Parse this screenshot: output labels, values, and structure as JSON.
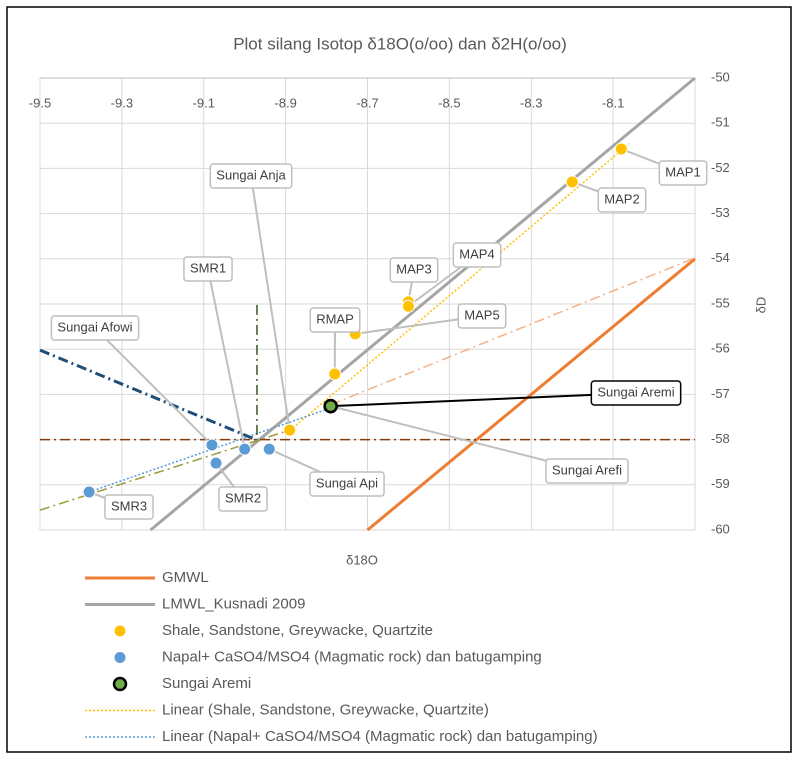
{
  "chart_data": {
    "type": "scatter",
    "title": "Plot silang Isotop δ18O(o/oo) dan δ2H(o/oo)",
    "x_label": "δ18O",
    "y_label": "δD",
    "xlim": [
      -9.5,
      -7.9
    ],
    "xticks": [
      -9.5,
      -9.3,
      -9.1,
      -8.9,
      -8.7,
      -8.5,
      -8.3,
      -8.1
    ],
    "ylim": [
      -60,
      -50
    ],
    "yticks": [
      -60,
      -59,
      -58,
      -57,
      -56,
      -55,
      -54,
      -53,
      -52,
      -51,
      -50
    ],
    "grid": true,
    "legend": "bottom",
    "series": [
      {
        "name": "GMWL",
        "mode": "line",
        "color": "#ed7d31",
        "dash": "solid",
        "width": 3,
        "x": [
          -8.7,
          -7.9
        ],
        "values": [
          -60,
          -54
        ]
      },
      {
        "name": "LMWL_Kusnadi 2009",
        "mode": "line",
        "color": "#a5a5a5",
        "dash": "solid",
        "width": 3,
        "x": [
          -9.23,
          -7.9
        ],
        "values": [
          -60,
          -50
        ]
      },
      {
        "name": "Shale, Sandstone, Greywacke, Quartzite",
        "mode": "markers",
        "color": "#ffc000",
        "x": [
          -8.08,
          -8.2,
          -8.6,
          -8.6,
          -8.73,
          -8.78,
          -8.89
        ],
        "values": [
          -51.57,
          -52.3,
          -54.95,
          -55.05,
          -55.66,
          -56.55,
          -57.79
        ],
        "labels": [
          "MAP1",
          "MAP2",
          "MAP3",
          "MAP4",
          "MAP5",
          "RMAP",
          "Sungai Anja"
        ]
      },
      {
        "name": "Napal+ CaSO4/MSO4 (Magmatic rock) dan batugamping",
        "mode": "markers",
        "color": "#5b9bd5",
        "x": [
          -9.08,
          -9.0,
          -9.07,
          -8.94,
          -9.38
        ],
        "values": [
          -58.12,
          -58.21,
          -58.52,
          -58.21,
          -59.16
        ],
        "labels": [
          "Sungai Afowi",
          "SMR1",
          "SMR2",
          "Sungai Api",
          "SMR3"
        ]
      },
      {
        "name": "Sungai Aremi",
        "mode": "markers",
        "color": "#70ad47",
        "x": [
          -8.79,
          -8.79
        ],
        "values": [
          -57.26,
          -57.26
        ],
        "labels": [
          "Sungai Aremi",
          "Sungai Arefi"
        ]
      },
      {
        "name": "Linear (Shale, Sandstone, Greywacke, Quartzite)",
        "mode": "line",
        "color": "#ffc000",
        "dash": "dot",
        "width": 1.5,
        "x": [
          -8.89,
          -8.06
        ],
        "values": [
          -57.8,
          -51.45
        ]
      },
      {
        "name": "Linear (Napal+ CaSO4/MSO4 (Magmatic rock) dan batugamping)",
        "mode": "line",
        "color": "#5b9bd5",
        "dash": "dot",
        "width": 1.5,
        "x": [
          -9.38,
          -8.79
        ],
        "values": [
          -59.16,
          -57.3
        ]
      },
      {
        "mode": "line",
        "color": "#1f4e79",
        "dash": "dashdot",
        "width": 3,
        "x": [
          -9.5,
          -8.97
        ],
        "values": [
          -56.02,
          -58.01
        ]
      },
      {
        "mode": "line",
        "color": "#375623",
        "dash": "dashdot",
        "width": 1.5,
        "x": [
          -8.97,
          -8.97
        ],
        "values": [
          -55.02,
          -58.0
        ]
      },
      {
        "mode": "line",
        "color": "#843c0c",
        "dash": "dashdot",
        "width": 1.5,
        "x": [
          -9.5,
          -7.9
        ],
        "values": [
          -58,
          -58
        ]
      },
      {
        "mode": "line",
        "color": "#f4b183",
        "dash": "dashdot",
        "width": 1.5,
        "x": [
          -8.79,
          -7.9
        ],
        "values": [
          -57.23,
          -53.98
        ]
      },
      {
        "mode": "line",
        "color": "#9c9a3a",
        "dash": "dashdot",
        "width": 1.5,
        "x": [
          -9.5,
          -8.89
        ],
        "values": [
          -59.56,
          -57.79
        ]
      }
    ]
  }
}
